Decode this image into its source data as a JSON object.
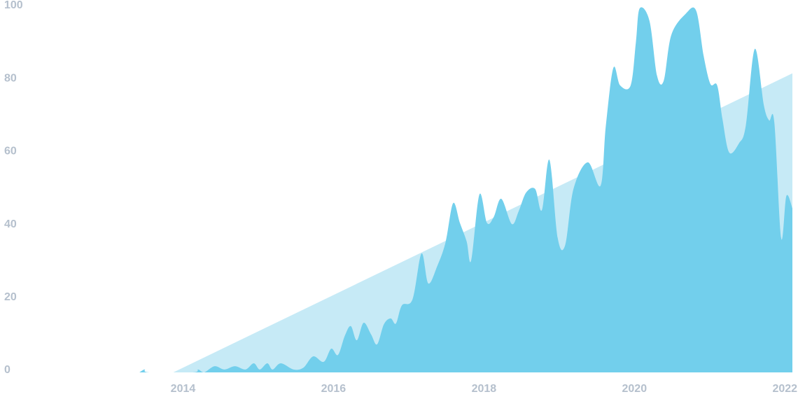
{
  "chart_data": {
    "type": "area",
    "xlim": [
      2013,
      2022.1
    ],
    "ylim": [
      0,
      100
    ],
    "xticks": [
      2014,
      2016,
      2018,
      2020,
      2022
    ],
    "yticks": [
      0,
      20,
      40,
      60,
      80,
      100
    ],
    "series": [
      {
        "color": "#c6eaf6",
        "x": [
          2013.87,
          2022.1
        ],
        "values": [
          0,
          82
        ]
      },
      {
        "color": "#72cfec",
        "x": [
          2013.42,
          2013.49,
          2013.55,
          2014.13,
          2014.2,
          2014.28,
          2014.42,
          2014.55,
          2014.69,
          2014.83,
          2014.94,
          2015.02,
          2015.12,
          2015.19,
          2015.3,
          2015.47,
          2015.6,
          2015.73,
          2015.87,
          2015.97,
          2016.06,
          2016.15,
          2016.23,
          2016.31,
          2016.4,
          2016.5,
          2016.58,
          2016.67,
          2016.76,
          2016.83,
          2016.91,
          2017.05,
          2017.17,
          2017.26,
          2017.38,
          2017.49,
          2017.59,
          2017.68,
          2017.77,
          2017.83,
          2017.94,
          2018.04,
          2018.13,
          2018.23,
          2018.37,
          2018.46,
          2018.56,
          2018.68,
          2018.77,
          2018.87,
          2018.98,
          2019.08,
          2019.19,
          2019.38,
          2019.55,
          2019.62,
          2019.72,
          2019.81,
          2019.95,
          2020.02,
          2020.07,
          2020.2,
          2020.3,
          2020.39,
          2020.49,
          2020.68,
          2020.82,
          2020.92,
          2021.01,
          2021.1,
          2021.17,
          2021.26,
          2021.39,
          2021.48,
          2021.6,
          2021.72,
          2021.79,
          2021.86,
          2021.95,
          2022.02,
          2022.1
        ],
        "values": [
          0,
          0.8,
          0,
          0,
          0.8,
          0,
          1.7,
          0.8,
          1.7,
          0.8,
          2.5,
          0.8,
          2.5,
          0.8,
          2.5,
          0.8,
          1.3,
          4.4,
          2.9,
          6.5,
          4.8,
          10,
          12.7,
          8.8,
          13.6,
          10.4,
          7.7,
          13.2,
          14.8,
          13.4,
          18.4,
          20,
          32.6,
          24.4,
          29.2,
          35.7,
          46.4,
          41,
          35.9,
          30.7,
          48.8,
          41,
          42.6,
          47.6,
          40.7,
          44.1,
          49.3,
          50.3,
          44.5,
          58.3,
          36.9,
          34.9,
          50.3,
          57.6,
          51.2,
          67.6,
          83.5,
          78.7,
          78.7,
          90.6,
          99.8,
          96.4,
          81.4,
          80,
          92.5,
          98.3,
          99.2,
          86.8,
          79.1,
          78.7,
          69.5,
          60.3,
          62.8,
          67.6,
          88.7,
          73.3,
          69.1,
          68.5,
          36.9,
          48.4,
          45
        ]
      }
    ]
  }
}
